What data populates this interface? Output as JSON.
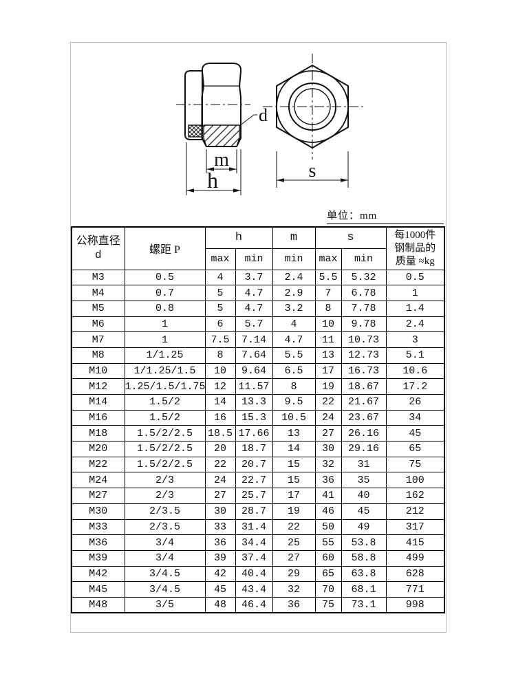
{
  "page": {
    "unit_label": "单位：mm"
  },
  "drawing": {
    "description": "nylon insert hex lock nut, side section view and hex face view",
    "labels": {
      "d": "d",
      "m": "m",
      "h": "h",
      "s": "s"
    }
  },
  "table": {
    "headers": {
      "col1_line1": "公称直径",
      "col1_line2": "d",
      "col2": "螺距 P",
      "h": "h",
      "m": "m",
      "s": "s",
      "max": "max",
      "min": "min",
      "weight_line1": "每1000件",
      "weight_line2": "钢制品的",
      "weight_line3": "质量 ≈kg"
    },
    "rows": [
      [
        "M3",
        "0.5",
        "4",
        "3.7",
        "2.4",
        "5.5",
        "5.32",
        "0.5"
      ],
      [
        "M4",
        "0.7",
        "5",
        "4.7",
        "2.9",
        "7",
        "6.78",
        "1"
      ],
      [
        "M5",
        "0.8",
        "5",
        "4.7",
        "3.2",
        "8",
        "7.78",
        "1.4"
      ],
      [
        "M6",
        "1",
        "6",
        "5.7",
        "4",
        "10",
        "9.78",
        "2.4"
      ],
      [
        "M7",
        "1",
        "7.5",
        "7.14",
        "4.7",
        "11",
        "10.73",
        "3"
      ],
      [
        "M8",
        "1/1.25",
        "8",
        "7.64",
        "5.5",
        "13",
        "12.73",
        "5.1"
      ],
      [
        "M10",
        "1/1.25/1.5",
        "10",
        "9.64",
        "6.5",
        "17",
        "16.73",
        "10.6"
      ],
      [
        "M12",
        "1.25/1.5/1.75",
        "12",
        "11.57",
        "8",
        "19",
        "18.67",
        "17.2"
      ],
      [
        "M14",
        "1.5/2",
        "14",
        "13.3",
        "9.5",
        "22",
        "21.67",
        "26"
      ],
      [
        "M16",
        "1.5/2",
        "16",
        "15.3",
        "10.5",
        "24",
        "23.67",
        "34"
      ],
      [
        "M18",
        "1.5/2/2.5",
        "18.5",
        "17.66",
        "13",
        "27",
        "26.16",
        "45"
      ],
      [
        "M20",
        "1.5/2/2.5",
        "20",
        "18.7",
        "14",
        "30",
        "29.16",
        "65"
      ],
      [
        "M22",
        "1.5/2/2.5",
        "22",
        "20.7",
        "15",
        "32",
        "31",
        "75"
      ],
      [
        "M24",
        "2/3",
        "24",
        "22.7",
        "15",
        "36",
        "35",
        "100"
      ],
      [
        "M27",
        "2/3",
        "27",
        "25.7",
        "17",
        "41",
        "40",
        "162"
      ],
      [
        "M30",
        "2/3.5",
        "30",
        "28.7",
        "19",
        "46",
        "45",
        "212"
      ],
      [
        "M33",
        "2/3.5",
        "33",
        "31.4",
        "22",
        "50",
        "49",
        "317"
      ],
      [
        "M36",
        "3/4",
        "36",
        "34.4",
        "25",
        "55",
        "53.8",
        "415"
      ],
      [
        "M39",
        "3/4",
        "39",
        "37.4",
        "27",
        "60",
        "58.8",
        "499"
      ],
      [
        "M42",
        "3/4.5",
        "42",
        "40.4",
        "29",
        "65",
        "63.8",
        "628"
      ],
      [
        "M45",
        "3/4.5",
        "45",
        "43.4",
        "32",
        "70",
        "68.1",
        "771"
      ],
      [
        "M48",
        "3/5",
        "48",
        "46.4",
        "36",
        "75",
        "73.1",
        "998"
      ]
    ]
  }
}
